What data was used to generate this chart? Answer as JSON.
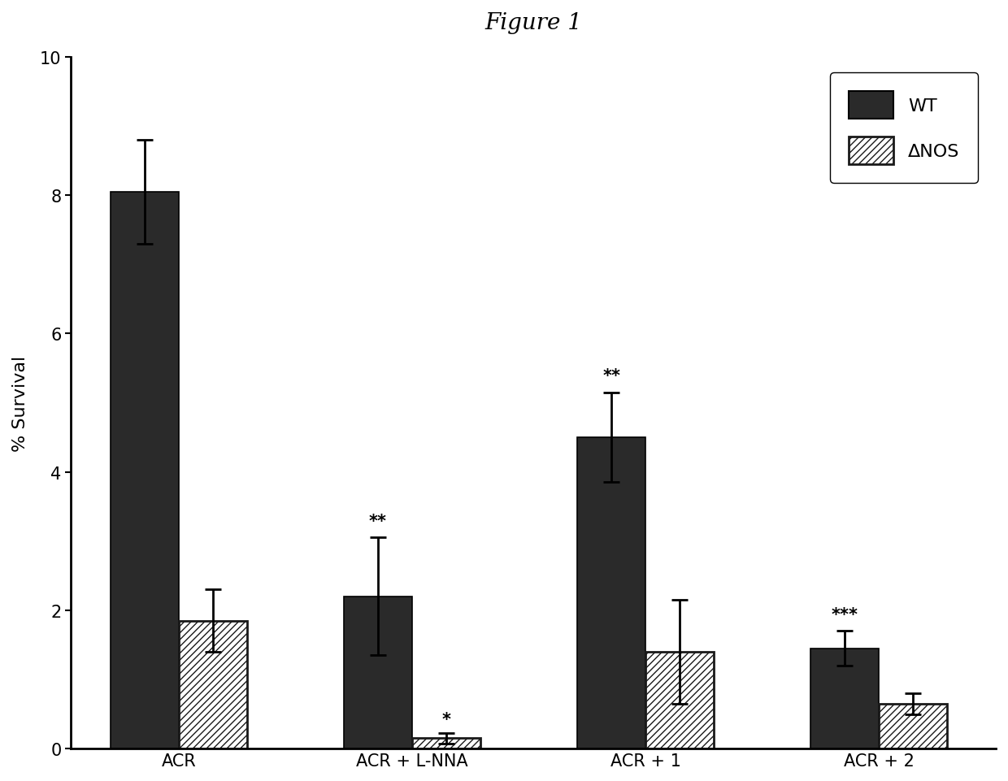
{
  "title": "Figure 1",
  "ylabel": "% Survival",
  "ylim": [
    0,
    10
  ],
  "yticks": [
    0,
    2,
    4,
    6,
    8,
    10
  ],
  "groups": [
    "ACR",
    "ACR + L-NNA",
    "ACR + 1",
    "ACR + 2"
  ],
  "wt_values": [
    8.05,
    2.2,
    4.5,
    1.45
  ],
  "wt_errors": [
    0.75,
    0.85,
    0.65,
    0.25
  ],
  "nos_values": [
    1.85,
    0.15,
    1.4,
    0.65
  ],
  "nos_errors": [
    0.45,
    0.08,
    0.75,
    0.15
  ],
  "wt_color": "#2a2a2a",
  "nos_facecolor": "#ffffff",
  "nos_hatch": "////",
  "nos_edgecolor": "#1a1a1a",
  "bar_width": 0.38,
  "significance_wt": [
    "",
    "**",
    "**",
    "***"
  ],
  "significance_nos": [
    "",
    "*",
    "",
    ""
  ],
  "sig_fontsize": 15,
  "title_fontsize": 20,
  "label_fontsize": 16,
  "tick_fontsize": 15,
  "legend_fontsize": 16,
  "background_color": "#ffffff",
  "legend_wt_label": "WT",
  "legend_nos_label": "ΔNOS"
}
